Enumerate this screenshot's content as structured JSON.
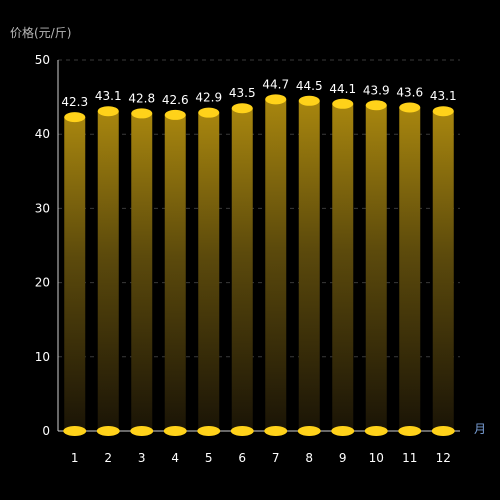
{
  "chart_data": {
    "type": "bar",
    "style": "cylinder-3d",
    "ylabel": "价格(元/斤)",
    "xlabel_unit": "月",
    "categories": [
      "1",
      "2",
      "3",
      "4",
      "5",
      "6",
      "7",
      "8",
      "9",
      "10",
      "11",
      "12"
    ],
    "values": [
      42.3,
      43.1,
      42.8,
      42.6,
      42.9,
      43.5,
      44.7,
      44.5,
      44.1,
      43.9,
      43.6,
      43.1
    ],
    "data_labels": [
      "42.3",
      "43.1",
      "42.8",
      "42.6",
      "42.9",
      "43.5",
      "44.7",
      "44.5",
      "44.1",
      "43.9",
      "43.6",
      "43.1"
    ],
    "y_ticks": [
      "0",
      "10",
      "20",
      "30",
      "40",
      "50"
    ],
    "ylim": [
      0,
      50
    ],
    "grid": true,
    "grid_style": "dashed",
    "legend": "none",
    "colors": {
      "background": "#000000",
      "bar_top": "#ffd21a",
      "bar_gradient_top": "#a8860e",
      "bar_gradient_bottom": "#1a1406",
      "grid": "#3a3a3a",
      "axis": "#d0d0d0",
      "label": "#ffffff",
      "unit": "#7aa0d8"
    }
  }
}
